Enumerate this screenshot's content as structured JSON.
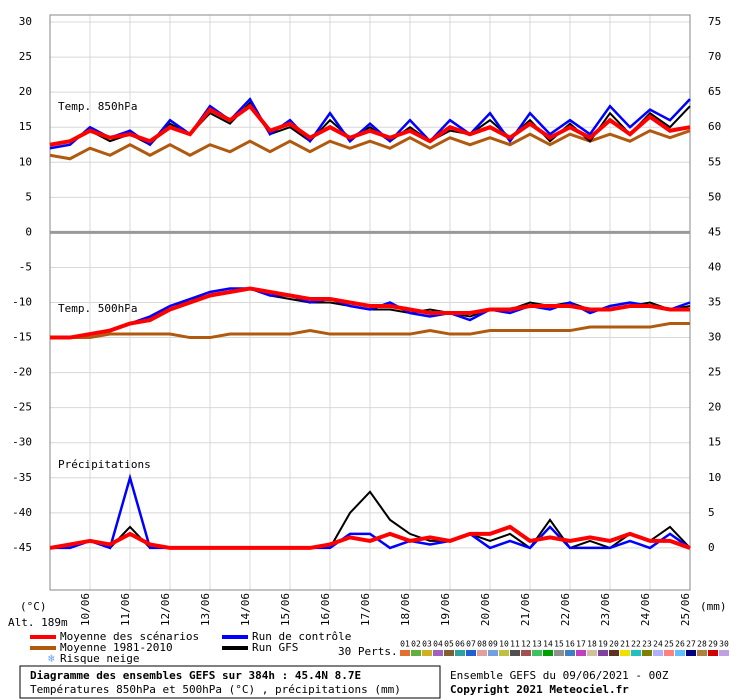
{
  "chart_data": {
    "type": "line",
    "title": "Diagramme des ensembles GEFS sur 384h : 45.4N 8.7E",
    "subtitle": "Températures 850hPa et 500hPa (°C) , précipitations (mm)",
    "run_label": "Ensemble GEFS du 09/06/2021 - 00Z",
    "copyright": "Copyright 2021 Meteociel.fr",
    "ylabel": "(°C)",
    "y2label": "(mm)",
    "altitude": "Alt. 189m",
    "annotations": [
      "Temp. 850hPa",
      "Temp. 500hPa",
      "Précipitations"
    ],
    "snow_label": "Risque neige",
    "x": [
      0,
      12,
      24,
      36,
      48,
      60,
      72,
      84,
      96,
      108,
      120,
      132,
      144,
      156,
      168,
      180,
      192,
      204,
      216,
      228,
      240,
      252,
      264,
      276,
      288,
      300,
      312,
      324,
      336,
      348,
      360,
      372,
      384
    ],
    "xlim": [
      0,
      384
    ],
    "xticks": [
      {
        "value": 24,
        "label": "10/06"
      },
      {
        "value": 48,
        "label": "11/06"
      },
      {
        "value": 72,
        "label": "12/06"
      },
      {
        "value": 96,
        "label": "13/06"
      },
      {
        "value": 120,
        "label": "14/06"
      },
      {
        "value": 144,
        "label": "15/06"
      },
      {
        "value": 168,
        "label": "16/06"
      },
      {
        "value": 192,
        "label": "17/06"
      },
      {
        "value": 216,
        "label": "18/06"
      },
      {
        "value": 240,
        "label": "19/06"
      },
      {
        "value": 264,
        "label": "20/06"
      },
      {
        "value": 288,
        "label": "21/06"
      },
      {
        "value": 312,
        "label": "22/06"
      },
      {
        "value": 336,
        "label": "23/06"
      },
      {
        "value": 360,
        "label": "24/06"
      },
      {
        "value": 384,
        "label": "25/06"
      }
    ],
    "ylim": [
      -51,
      31
    ],
    "yticks": [
      30,
      25,
      20,
      15,
      10,
      5,
      0,
      -5,
      -10,
      -15,
      -20,
      -25,
      -30,
      -35,
      -40,
      -45
    ],
    "y2lim": [
      -6,
      76
    ],
    "y2ticks": [
      75,
      70,
      65,
      60,
      55,
      50,
      45,
      40,
      35,
      30,
      25,
      20,
      15,
      10,
      5,
      0
    ],
    "grid": true,
    "series": [
      {
        "name": "Moyenne des scénarios",
        "color": "#ff0000",
        "t850": [
          12.5,
          13,
          14.5,
          13.5,
          14,
          13,
          15,
          14,
          17.5,
          16,
          18,
          14.5,
          15.5,
          13.5,
          15,
          13.5,
          14.5,
          13.5,
          14.5,
          13,
          15,
          14,
          15,
          13.5,
          15.5,
          13.5,
          15,
          13.5,
          16,
          14,
          16.5,
          14.5,
          15
        ],
        "t500": [
          -15,
          -15,
          -14.5,
          -14,
          -13,
          -12.5,
          -11,
          -10,
          -9,
          -8.5,
          -8,
          -8.5,
          -9,
          -9.5,
          -9.5,
          -10,
          -10.5,
          -10.5,
          -11,
          -11.5,
          -11.5,
          -11.5,
          -11,
          -11,
          -10.5,
          -10.5,
          -10.5,
          -11,
          -11,
          -10.5,
          -10.5,
          -11,
          -11
        ],
        "precip": [
          0,
          0.5,
          1,
          0.5,
          2,
          0.5,
          0,
          0,
          0,
          0,
          0,
          0,
          0,
          0,
          0.5,
          1.5,
          1,
          2,
          1,
          1.5,
          1,
          2,
          2,
          3,
          1,
          1.5,
          1,
          1.5,
          1,
          2,
          1,
          1,
          0
        ]
      },
      {
        "name": "Moyenne 1981-2010",
        "color": "#b05a10",
        "t850": [
          11,
          10.5,
          12,
          11,
          12.5,
          11,
          12.5,
          11,
          12.5,
          11.5,
          13,
          11.5,
          13,
          11.5,
          13,
          12,
          13,
          12,
          13.5,
          12,
          13.5,
          12.5,
          13.5,
          12.5,
          14,
          12.5,
          14,
          13,
          14,
          13,
          14.5,
          13.5,
          14.5
        ],
        "t500": [
          -15,
          -15,
          -15,
          -14.5,
          -14.5,
          -14.5,
          -14.5,
          -15,
          -15,
          -14.5,
          -14.5,
          -14.5,
          -14.5,
          -14,
          -14.5,
          -14.5,
          -14.5,
          -14.5,
          -14.5,
          -14,
          -14.5,
          -14.5,
          -14,
          -14,
          -14,
          -14,
          -14,
          -13.5,
          -13.5,
          -13.5,
          -13.5,
          -13,
          -13
        ]
      },
      {
        "name": "Run de contrôle",
        "color": "#0000ff",
        "t850": [
          12,
          12.5,
          15,
          13.5,
          14.5,
          12.5,
          16,
          14,
          18,
          16,
          19,
          14,
          16,
          13,
          17,
          13,
          15.5,
          13,
          16,
          13,
          16,
          14,
          17,
          13,
          17,
          14,
          16,
          14,
          18,
          15,
          17.5,
          16,
          19
        ],
        "t500": [
          -15,
          -15,
          -14.5,
          -14,
          -13,
          -12,
          -10.5,
          -9.5,
          -8.5,
          -8,
          -8,
          -9,
          -9,
          -10,
          -9.5,
          -10.5,
          -11,
          -10,
          -11.5,
          -12,
          -11.5,
          -12.5,
          -11,
          -11.5,
          -10.5,
          -11,
          -10,
          -11.5,
          -10.5,
          -10,
          -10.5,
          -11,
          -10
        ],
        "precip": [
          0,
          0,
          1,
          0,
          10,
          0,
          0,
          0,
          0,
          0,
          0,
          0,
          0,
          0,
          0,
          2,
          2,
          0,
          1,
          0.5,
          1,
          2,
          0,
          1,
          0,
          3,
          0,
          0,
          0,
          1,
          0,
          2,
          0
        ]
      },
      {
        "name": "Run GFS",
        "color": "#000000",
        "t850": [
          12.5,
          13,
          14.5,
          13,
          14,
          12.5,
          15.5,
          14,
          17,
          15.5,
          18.5,
          14,
          15,
          13,
          16,
          13.5,
          15,
          13,
          15,
          13,
          14.5,
          14,
          16,
          13.5,
          16,
          13,
          15.5,
          13,
          17,
          14,
          17,
          15,
          18
        ],
        "t500": [
          -15,
          -15,
          -14.5,
          -14,
          -13,
          -12,
          -11,
          -9.5,
          -9,
          -8.5,
          -8,
          -9,
          -9.5,
          -10,
          -10,
          -10.5,
          -11,
          -11,
          -11.5,
          -11,
          -11.5,
          -12,
          -11,
          -11,
          -10,
          -10.5,
          -10,
          -11,
          -11,
          -10.5,
          -10,
          -11,
          -10.5
        ],
        "precip": [
          0,
          0,
          1,
          0,
          3,
          0,
          0,
          0,
          0,
          0,
          0,
          0,
          0,
          0,
          0,
          5,
          8,
          4,
          2,
          1,
          1,
          2,
          1,
          2,
          0,
          4,
          0,
          1,
          0,
          2,
          1,
          3,
          0
        ]
      }
    ],
    "perturbations": {
      "label": "30 Perts.",
      "members": [
        {
          "name": "01",
          "color": "#e07030"
        },
        {
          "name": "02",
          "color": "#60b040"
        },
        {
          "name": "03",
          "color": "#d0b020"
        },
        {
          "name": "04",
          "color": "#a060c0"
        },
        {
          "name": "05",
          "color": "#806030"
        },
        {
          "name": "06",
          "color": "#30a0a0"
        },
        {
          "name": "07",
          "color": "#2060d0"
        },
        {
          "name": "08",
          "color": "#e0a0a0"
        },
        {
          "name": "09",
          "color": "#70a0e0"
        },
        {
          "name": "10",
          "color": "#c0c040"
        },
        {
          "name": "11",
          "color": "#505050"
        },
        {
          "name": "12",
          "color": "#a05050"
        },
        {
          "name": "13",
          "color": "#40c060"
        },
        {
          "name": "14",
          "color": "#00a000"
        },
        {
          "name": "15",
          "color": "#909090"
        },
        {
          "name": "16",
          "color": "#4080c0"
        },
        {
          "name": "17",
          "color": "#c040c0"
        },
        {
          "name": "18",
          "color": "#d0c0a0"
        },
        {
          "name": "19",
          "color": "#8040a0"
        },
        {
          "name": "20",
          "color": "#603020"
        },
        {
          "name": "21",
          "color": "#f0e000"
        },
        {
          "name": "22",
          "color": "#20c0c0"
        },
        {
          "name": "23",
          "color": "#808000"
        },
        {
          "name": "24",
          "color": "#b0b0ff"
        },
        {
          "name": "25",
          "color": "#ff8080"
        },
        {
          "name": "26",
          "color": "#60c0ff"
        },
        {
          "name": "27",
          "color": "#000080"
        },
        {
          "name": "28",
          "color": "#b08040"
        },
        {
          "name": "29",
          "color": "#d00000"
        },
        {
          "name": "30",
          "color": "#c0a0e0"
        }
      ]
    }
  }
}
